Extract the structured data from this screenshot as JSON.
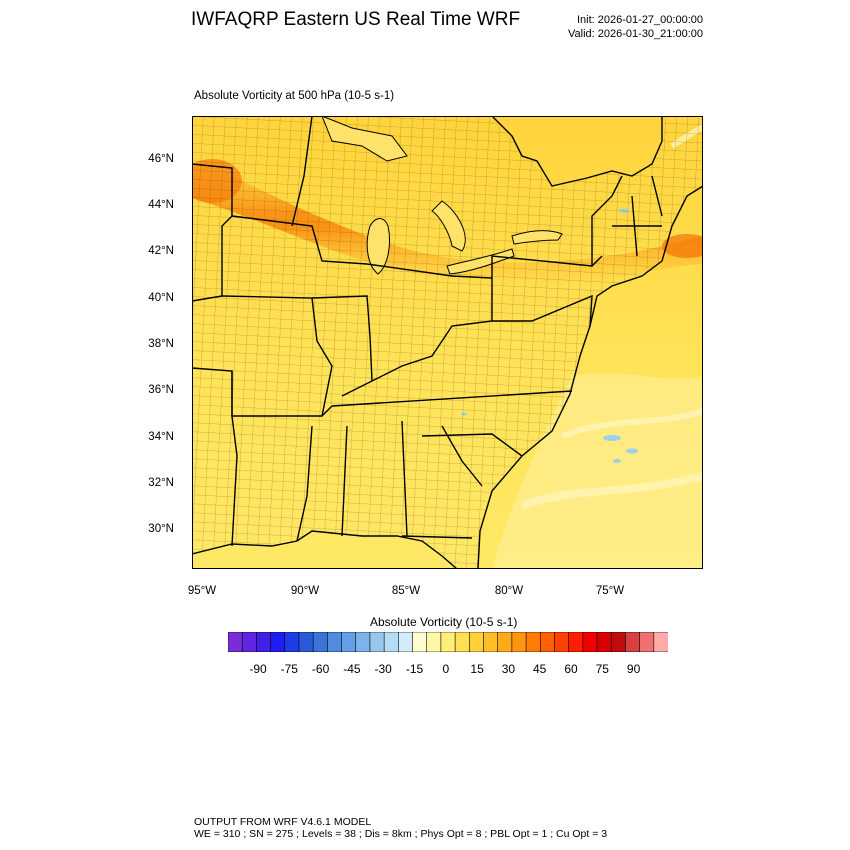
{
  "header": {
    "title": "IWFAQRP Eastern US Real Time WRF",
    "init": "Init: 2026-01-27_00:00:00",
    "valid": "Valid: 2026-01-30_21:00:00"
  },
  "plot": {
    "field_title": "Absolute Vorticity at 500 hPa   (10-5 s-1)",
    "lat_labels": [
      "46°N",
      "44°N",
      "42°N",
      "40°N",
      "38°N",
      "36°N",
      "34°N",
      "32°N",
      "30°N"
    ],
    "lon_labels": [
      "95°W",
      "90°W",
      "85°W",
      "80°W",
      "75°W"
    ]
  },
  "colorbar": {
    "title": "Absolute Vorticity  (10-5 s-1)",
    "tick_labels": [
      "-90",
      "-75",
      "-60",
      "-45",
      "-30",
      "-15",
      "0",
      "15",
      "30",
      "45",
      "60",
      "75",
      "90"
    ],
    "colors": [
      "#7b2cd9",
      "#5e28e0",
      "#4020e6",
      "#1e1ef0",
      "#1c3ce8",
      "#2a5ad8",
      "#3c73d6",
      "#4e8ce0",
      "#649ee6",
      "#7cb4ea",
      "#96c8ee",
      "#b4dcf4",
      "#d2ecfa",
      "#fffcd0",
      "#fff7a8",
      "#ffef78",
      "#ffe050",
      "#ffd03a",
      "#ffbe28",
      "#ffaa1a",
      "#ff9410",
      "#ff7c0a",
      "#ff6008",
      "#ff4006",
      "#ff1e04",
      "#f00000",
      "#d80000",
      "#c00c0c",
      "#d84040",
      "#ee7070",
      "#ffaaaa"
    ]
  },
  "footer": {
    "line1": "OUTPUT FROM WRF V4.6.1 MODEL",
    "line2": "WE = 310 ; SN = 275 ; Levels = 38 ; Dis = 8km ; Phys Opt = 8 ; PBL Opt = 1 ; Cu Opt = 3"
  }
}
